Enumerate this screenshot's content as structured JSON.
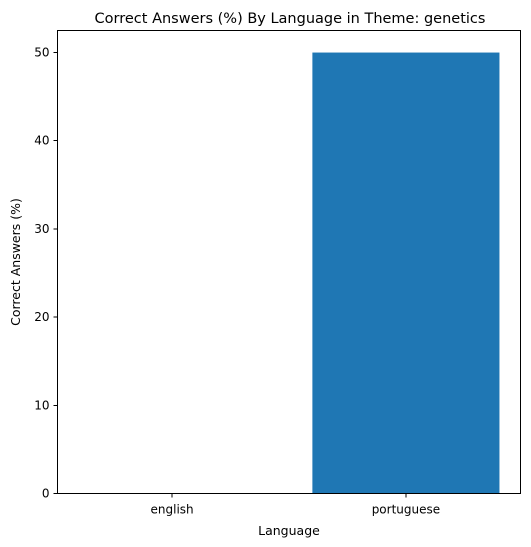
{
  "chart_data": {
    "type": "bar",
    "title": "Correct Answers (%) By Language in Theme: genetics",
    "xlabel": "Language",
    "ylabel": "Correct Answers (%)",
    "categories": [
      "english",
      "portuguese"
    ],
    "values": [
      0,
      50
    ],
    "ylim": [
      0,
      52.5
    ],
    "yticks": [
      0,
      10,
      20,
      30,
      40,
      50
    ],
    "grid": false,
    "bar_color": "#1f77b4"
  }
}
